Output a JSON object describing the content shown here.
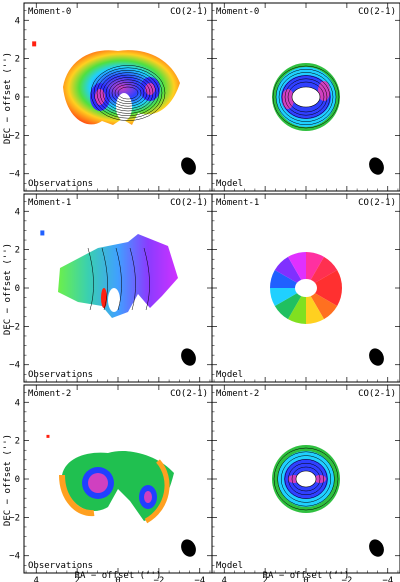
{
  "figure": {
    "panels": [
      {
        "row": 0,
        "col": 0,
        "moment": "Moment-0",
        "line": "CO(2-1)",
        "source": "Observations"
      },
      {
        "row": 0,
        "col": 1,
        "moment": "Moment-0",
        "line": "CO(2-1)",
        "source": "Model"
      },
      {
        "row": 1,
        "col": 0,
        "moment": "Moment-1",
        "line": "CO(2-1)",
        "source": "Observations"
      },
      {
        "row": 1,
        "col": 1,
        "moment": "Moment-1",
        "line": "CO(2-1)",
        "source": "Model"
      },
      {
        "row": 2,
        "col": 0,
        "moment": "Moment-2",
        "line": "CO(2-1)",
        "source": "Observations"
      },
      {
        "row": 2,
        "col": 1,
        "moment": "Moment-2",
        "line": "CO(2-1)",
        "source": "Model"
      }
    ],
    "axes": {
      "xlabel": "RA − offset ('')",
      "ylabel": "DEC − offset ('')",
      "xticks": [
        "4",
        "2",
        "0",
        "−2",
        "−4"
      ],
      "yticks": [
        "4",
        "2",
        "0",
        "−2",
        "−4"
      ],
      "xlim": [
        4.6,
        -4.6
      ],
      "ylim": [
        -4.9,
        4.9
      ]
    }
  }
}
